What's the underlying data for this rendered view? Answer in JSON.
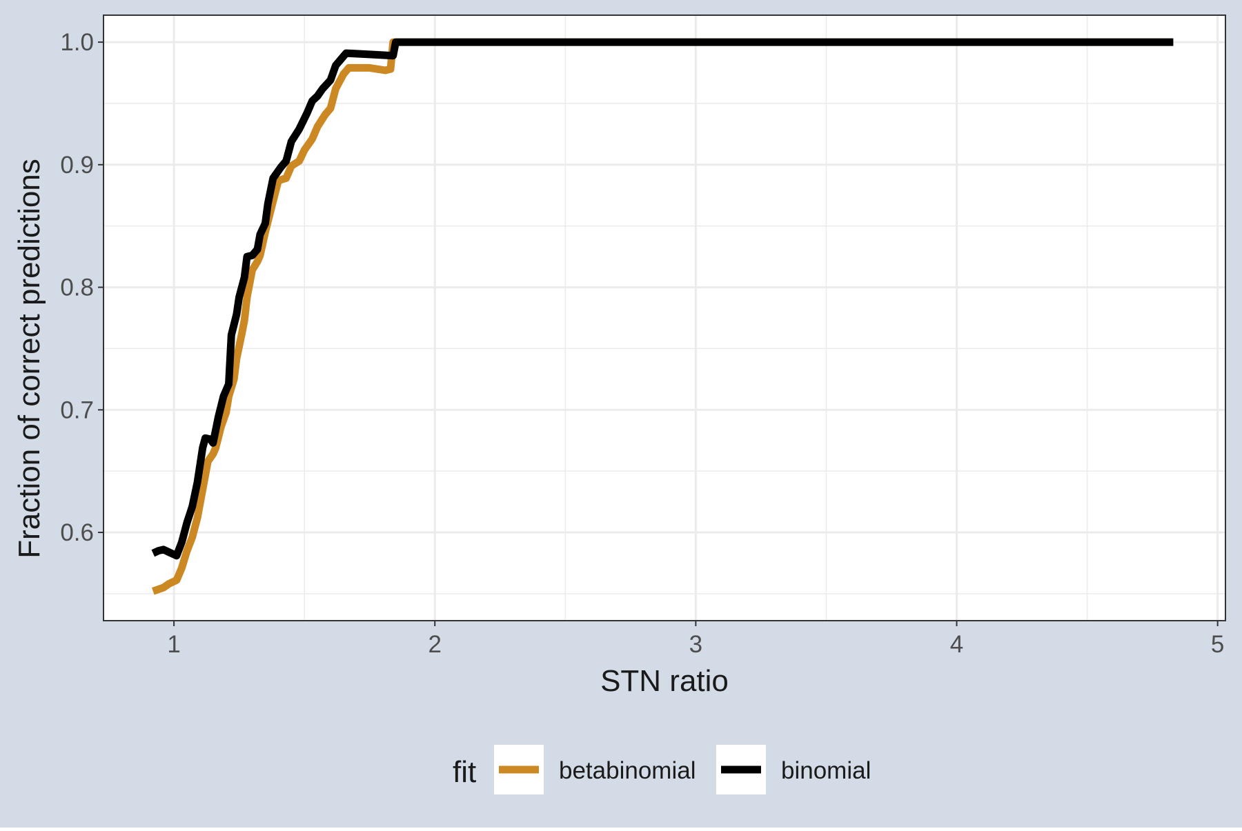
{
  "chart_data": {
    "type": "line",
    "xlabel": "STN ratio",
    "ylabel": "Fraction of correct predictions",
    "xlim": [
      0.73,
      5.03
    ],
    "ylim": [
      0.528,
      1.022
    ],
    "x_ticks": [
      1,
      2,
      3,
      4,
      5
    ],
    "x_tick_labels": [
      "1",
      "2",
      "3",
      "4",
      "5"
    ],
    "y_ticks": [
      0.6,
      0.7,
      0.8,
      0.9,
      1.0
    ],
    "y_tick_labels": [
      "0.6",
      "0.7",
      "0.8",
      "0.9",
      "1.0"
    ],
    "grid": true,
    "legend": {
      "title": "fit",
      "position": "bottom"
    },
    "colors": {
      "outer_background": "#d3dbe6",
      "panel_background": "#ffffff",
      "grid": "#ebebeb",
      "axis_text": "#4d4d4d",
      "title_text": "#1a1a1a"
    },
    "series": [
      {
        "name": "betabinomial",
        "color": "#cc8822",
        "points": [
          [
            0.92,
            0.552
          ],
          [
            0.96,
            0.555
          ],
          [
            0.98,
            0.558
          ],
          [
            1.01,
            0.561
          ],
          [
            1.03,
            0.571
          ],
          [
            1.05,
            0.585
          ],
          [
            1.07,
            0.596
          ],
          [
            1.09,
            0.612
          ],
          [
            1.11,
            0.635
          ],
          [
            1.13,
            0.658
          ],
          [
            1.15,
            0.664
          ],
          [
            1.16,
            0.669
          ],
          [
            1.18,
            0.686
          ],
          [
            1.2,
            0.698
          ],
          [
            1.21,
            0.711
          ],
          [
            1.23,
            0.725
          ],
          [
            1.24,
            0.742
          ],
          [
            1.26,
            0.762
          ],
          [
            1.27,
            0.773
          ],
          [
            1.28,
            0.792
          ],
          [
            1.3,
            0.814
          ],
          [
            1.32,
            0.821
          ],
          [
            1.33,
            0.826
          ],
          [
            1.35,
            0.845
          ],
          [
            1.37,
            0.862
          ],
          [
            1.4,
            0.887
          ],
          [
            1.43,
            0.889
          ],
          [
            1.45,
            0.899
          ],
          [
            1.48,
            0.903
          ],
          [
            1.5,
            0.912
          ],
          [
            1.53,
            0.921
          ],
          [
            1.55,
            0.931
          ],
          [
            1.58,
            0.941
          ],
          [
            1.6,
            0.946
          ],
          [
            1.62,
            0.962
          ],
          [
            1.65,
            0.974
          ],
          [
            1.67,
            0.979
          ],
          [
            1.75,
            0.979
          ],
          [
            1.81,
            0.977
          ],
          [
            1.83,
            0.978
          ],
          [
            1.84,
            1.0
          ],
          [
            4.83,
            1.0
          ]
        ]
      },
      {
        "name": "binomial",
        "color": "#000000",
        "points": [
          [
            0.92,
            0.583
          ],
          [
            0.94,
            0.585
          ],
          [
            0.96,
            0.586
          ],
          [
            0.98,
            0.584
          ],
          [
            1.01,
            0.581
          ],
          [
            1.03,
            0.592
          ],
          [
            1.05,
            0.608
          ],
          [
            1.07,
            0.621
          ],
          [
            1.09,
            0.641
          ],
          [
            1.11,
            0.669
          ],
          [
            1.12,
            0.677
          ],
          [
            1.14,
            0.676
          ],
          [
            1.15,
            0.673
          ],
          [
            1.17,
            0.694
          ],
          [
            1.19,
            0.711
          ],
          [
            1.21,
            0.721
          ],
          [
            1.22,
            0.761
          ],
          [
            1.24,
            0.778
          ],
          [
            1.25,
            0.792
          ],
          [
            1.27,
            0.808
          ],
          [
            1.28,
            0.825
          ],
          [
            1.3,
            0.826
          ],
          [
            1.32,
            0.831
          ],
          [
            1.33,
            0.843
          ],
          [
            1.35,
            0.852
          ],
          [
            1.36,
            0.868
          ],
          [
            1.38,
            0.889
          ],
          [
            1.41,
            0.898
          ],
          [
            1.43,
            0.903
          ],
          [
            1.45,
            0.919
          ],
          [
            1.48,
            0.929
          ],
          [
            1.51,
            0.942
          ],
          [
            1.53,
            0.952
          ],
          [
            1.55,
            0.956
          ],
          [
            1.57,
            0.962
          ],
          [
            1.6,
            0.969
          ],
          [
            1.62,
            0.981
          ],
          [
            1.64,
            0.986
          ],
          [
            1.66,
            0.991
          ],
          [
            1.75,
            0.99
          ],
          [
            1.84,
            0.989
          ],
          [
            1.85,
            1.0
          ],
          [
            4.83,
            1.0
          ]
        ]
      }
    ]
  }
}
